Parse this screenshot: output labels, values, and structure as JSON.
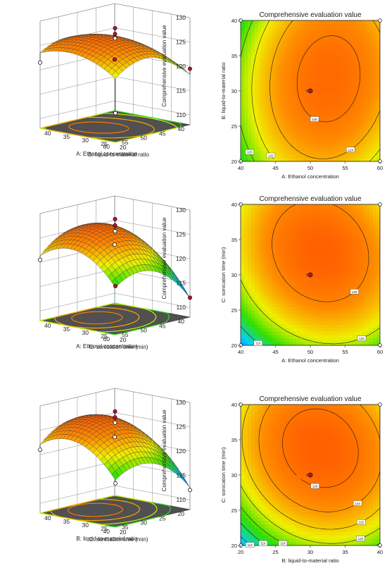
{
  "colors": {
    "low": "#1e40ff",
    "mid_low": "#00d0ff",
    "mid": "#30e000",
    "mid_high": "#f0f000",
    "high": "#ff8c00",
    "peak": "#ff5200",
    "floor": "#505050",
    "point": "#c8102e"
  },
  "chart_data": [
    {
      "type": "surface3d",
      "zlabel": "Comprehensive evaluation value",
      "xlabel": "A: Ethanol concentration",
      "ylabel": "B: liquid-to-material ratio",
      "x_ticks": [
        "40",
        "45",
        "50",
        "55",
        "60"
      ],
      "y_ticks": [
        "20",
        "25",
        "30",
        "35",
        "40"
      ],
      "z_ticks": [
        "110",
        "115",
        "120",
        "125",
        "130"
      ],
      "xlim": [
        40,
        60
      ],
      "ylim": [
        20,
        40
      ],
      "zlim": [
        108,
        130
      ],
      "model": {
        "b0": 126.5,
        "x": 2.0,
        "y": 0.6,
        "xx": -4.0,
        "yy": -2.2,
        "xy": 0.6
      },
      "design_points": [
        {
          "x": 50,
          "y": 30,
          "z": 128.2
        },
        {
          "x": 50,
          "y": 30,
          "z": 127.0
        },
        {
          "x": 50,
          "y": 30,
          "z": 126.1
        },
        {
          "x": 40,
          "y": 20,
          "z": 119.5
        },
        {
          "x": 60,
          "y": 40,
          "z": 121.5
        },
        {
          "x": 40,
          "y": 40,
          "z": 118.5
        },
        {
          "x": 60,
          "y": 20,
          "z": 114.0
        }
      ]
    },
    {
      "type": "contour",
      "title": "Comprehensive evaluation value",
      "xlabel": "A: Ethanol concentration",
      "ylabel": "B: liquid-to-material ratio",
      "x_ticks": [
        "40",
        "45",
        "50",
        "55",
        "60"
      ],
      "y_ticks": [
        "20",
        "25",
        "30",
        "35",
        "40"
      ],
      "xlim": [
        40,
        60
      ],
      "ylim": [
        20,
        40
      ],
      "model": {
        "b0": 126.5,
        "x": 2.0,
        "y": 0.6,
        "xx": -4.0,
        "yy": -2.2,
        "xy": 0.6
      },
      "color_range": [
        113,
        128
      ],
      "contour_levels": [
        118,
        120,
        122,
        124,
        126
      ],
      "level_labels": [
        "118",
        "120",
        "122",
        "124",
        "126"
      ],
      "center_label": "5",
      "design_points": [
        {
          "x": 50,
          "y": 30
        },
        {
          "x": 40,
          "y": 20
        },
        {
          "x": 60,
          "y": 20
        },
        {
          "x": 40,
          "y": 40
        },
        {
          "x": 60,
          "y": 40
        }
      ]
    },
    {
      "type": "surface3d",
      "zlabel": "Comprehensive evaluation value",
      "xlabel": "A: Ethanol concentration",
      "ylabel": "C: sonication time (min)",
      "x_ticks": [
        "40",
        "45",
        "50",
        "55",
        "60"
      ],
      "y_ticks": [
        "20",
        "25",
        "30",
        "35",
        "40"
      ],
      "z_ticks": [
        "110",
        "115",
        "120",
        "125",
        "130"
      ],
      "xlim": [
        40,
        60
      ],
      "ylim": [
        20,
        40
      ],
      "zlim": [
        108,
        130
      ],
      "model": {
        "b0": 126.5,
        "x": 1.7,
        "y": 3.0,
        "xx": -4.5,
        "yy": -4.2,
        "xy": -1.2
      },
      "design_points": [
        {
          "x": 50,
          "y": 30,
          "z": 128.5
        },
        {
          "x": 50,
          "y": 30,
          "z": 127.2
        },
        {
          "x": 50,
          "y": 30,
          "z": 126.0
        },
        {
          "x": 40,
          "y": 20,
          "z": 112.0
        },
        {
          "x": 60,
          "y": 40,
          "z": 120.5
        },
        {
          "x": 40,
          "y": 40,
          "z": 120.0
        },
        {
          "x": 60,
          "y": 20,
          "z": 118.0
        }
      ]
    },
    {
      "type": "contour",
      "title": "Comprehensive evaluation value",
      "xlabel": "A: Ethanol concentration",
      "ylabel": "C: sonication time (min)",
      "x_ticks": [
        "40",
        "45",
        "50",
        "55",
        "60"
      ],
      "y_ticks": [
        "20",
        "25",
        "30",
        "35",
        "40"
      ],
      "xlim": [
        40,
        60
      ],
      "ylim": [
        20,
        40
      ],
      "model": {
        "b0": 126.5,
        "x": 1.7,
        "y": 3.0,
        "xx": -4.5,
        "yy": -4.2,
        "xy": -1.2
      },
      "color_range": [
        110,
        128
      ],
      "contour_levels": [
        115,
        120,
        125
      ],
      "level_labels": [
        "115",
        "120",
        "125"
      ],
      "center_label": "5",
      "design_points": [
        {
          "x": 50,
          "y": 30
        },
        {
          "x": 40,
          "y": 20
        },
        {
          "x": 60,
          "y": 20
        },
        {
          "x": 40,
          "y": 40
        },
        {
          "x": 60,
          "y": 40
        }
      ]
    },
    {
      "type": "surface3d",
      "zlabel": "Comprehensive evaluation value",
      "xlabel": "B: liquid-to-material ratio",
      "ylabel": "C: sonication time (min)",
      "x_ticks": [
        "20",
        "25",
        "30",
        "35",
        "40"
      ],
      "y_ticks": [
        "20",
        "25",
        "30",
        "35",
        "40"
      ],
      "z_ticks": [
        "110",
        "115",
        "120",
        "125",
        "130"
      ],
      "xlim": [
        20,
        40
      ],
      "ylim": [
        20,
        40
      ],
      "zlim": [
        108,
        130
      ],
      "model": {
        "b0": 126.5,
        "x": 1.6,
        "y": 3.2,
        "xx": -4.2,
        "yy": -4.0,
        "xy": -1.0
      },
      "design_points": [
        {
          "x": 30,
          "y": 30,
          "z": 128.5
        },
        {
          "x": 30,
          "y": 30,
          "z": 127.3
        },
        {
          "x": 30,
          "y": 30,
          "z": 126.2
        },
        {
          "x": 20,
          "y": 20,
          "z": 112.0
        },
        {
          "x": 40,
          "y": 40,
          "z": 121.0
        },
        {
          "x": 20,
          "y": 40,
          "z": 120.0
        },
        {
          "x": 40,
          "y": 20,
          "z": 117.0
        }
      ]
    },
    {
      "type": "contour",
      "title": "Comprehensive evaluation value",
      "xlabel": "B: liquid-to-material ratio",
      "ylabel": "C: sonication time (min)",
      "x_ticks": [
        "20",
        "25",
        "30",
        "35",
        "40"
      ],
      "y_ticks": [
        "20",
        "25",
        "30",
        "35",
        "40"
      ],
      "xlim": [
        20,
        40
      ],
      "ylim": [
        20,
        40
      ],
      "model": {
        "b0": 126.5,
        "x": 1.6,
        "y": 3.2,
        "xx": -4.2,
        "yy": -4.0,
        "xy": -1.0
      },
      "color_range": [
        110,
        128
      ],
      "contour_levels": [
        114,
        116,
        118,
        120,
        122,
        124,
        126
      ],
      "level_labels": [
        "114",
        "116",
        "118",
        "120",
        "122",
        "124",
        "126"
      ],
      "center_label": "5",
      "design_points": [
        {
          "x": 30,
          "y": 30
        },
        {
          "x": 20,
          "y": 20
        },
        {
          "x": 40,
          "y": 20
        },
        {
          "x": 20,
          "y": 40
        },
        {
          "x": 40,
          "y": 40
        }
      ]
    }
  ]
}
